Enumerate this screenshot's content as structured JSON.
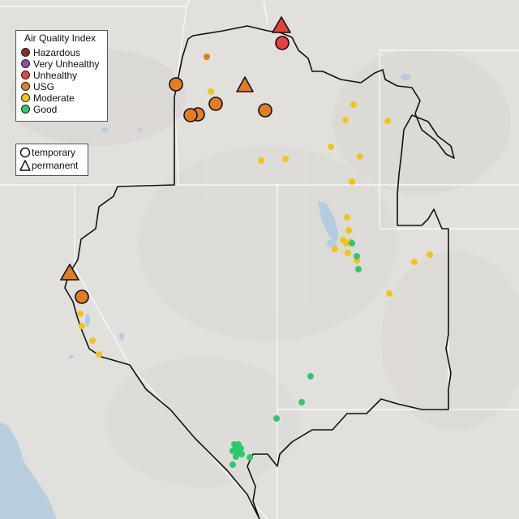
{
  "legend": {
    "title": "Air Quality Index",
    "categories": [
      {
        "label": "Hazardous",
        "color": "#7e2f2b"
      },
      {
        "label": "Very Unhealthy",
        "color": "#8e4fa8"
      },
      {
        "label": "Unhealthy",
        "color": "#e8413c"
      },
      {
        "label": "USG",
        "color": "#e37e20"
      },
      {
        "label": "Moderate",
        "color": "#f2c515"
      },
      {
        "label": "Good",
        "color": "#2ec86c"
      }
    ],
    "monitor_types": [
      {
        "label": "temporary",
        "symbol": "circle-outline-icon"
      },
      {
        "label": "permanent",
        "symbol": "triangle-outline-icon"
      }
    ]
  },
  "colors": {
    "land": "#e2e0dd",
    "ocean": "#b9cfe0",
    "water": "#b4cbe0",
    "boundary": "#111111",
    "state_lines": "#f7f7f7"
  }
}
